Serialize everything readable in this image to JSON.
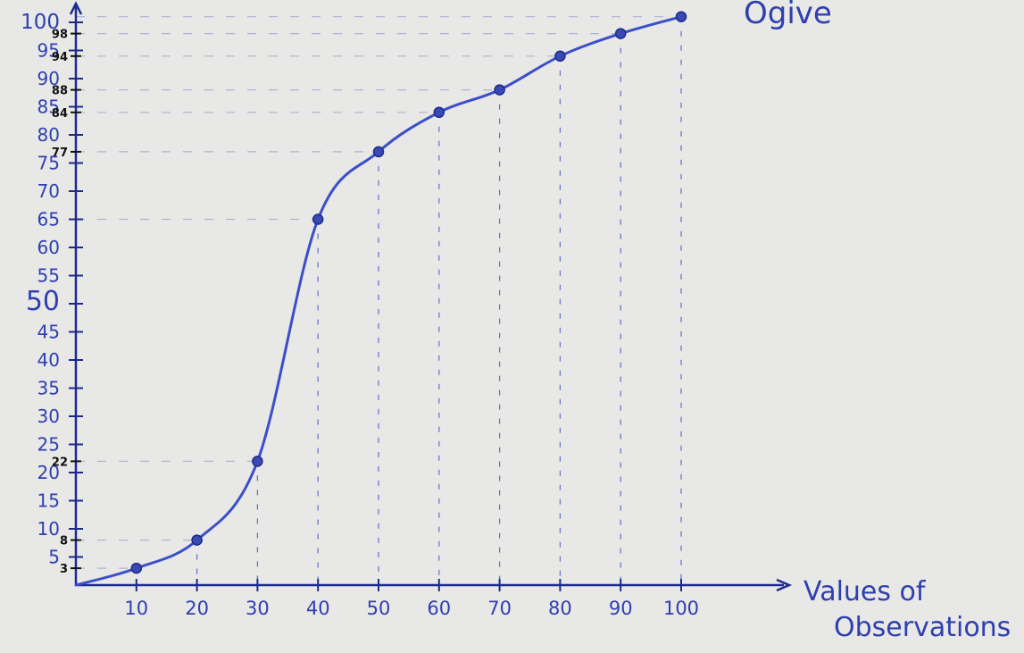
{
  "chart_data": {
    "type": "line",
    "title": "Ogive",
    "xlabel": "Values of Observations",
    "ylabel": "",
    "xlim": [
      0,
      100
    ],
    "ylim": [
      0,
      100
    ],
    "grid": false,
    "x_ticks": [
      10,
      20,
      30,
      40,
      50,
      60,
      70,
      80,
      90,
      100
    ],
    "y_ticks": [
      5,
      10,
      15,
      20,
      25,
      30,
      35,
      40,
      45,
      50,
      55,
      60,
      65,
      70,
      75,
      80,
      85,
      90,
      95,
      100
    ],
    "y_marked_values": [
      3,
      8,
      22,
      77,
      84,
      88,
      94,
      98
    ],
    "series": [
      {
        "x": [
          0,
          10,
          20,
          30,
          40,
          50,
          60,
          70,
          80,
          90,
          100
        ],
        "y": [
          0,
          3,
          8,
          22,
          65,
          77,
          84,
          88,
          94,
          98,
          101
        ]
      }
    ]
  },
  "colors": {
    "background": "#e8e8e6",
    "axis": "#1c2a8c",
    "curve": "#3b4fc9",
    "points": "#2b3aa0",
    "labels": "#2f3fb0",
    "marked_labels": "#111111"
  }
}
